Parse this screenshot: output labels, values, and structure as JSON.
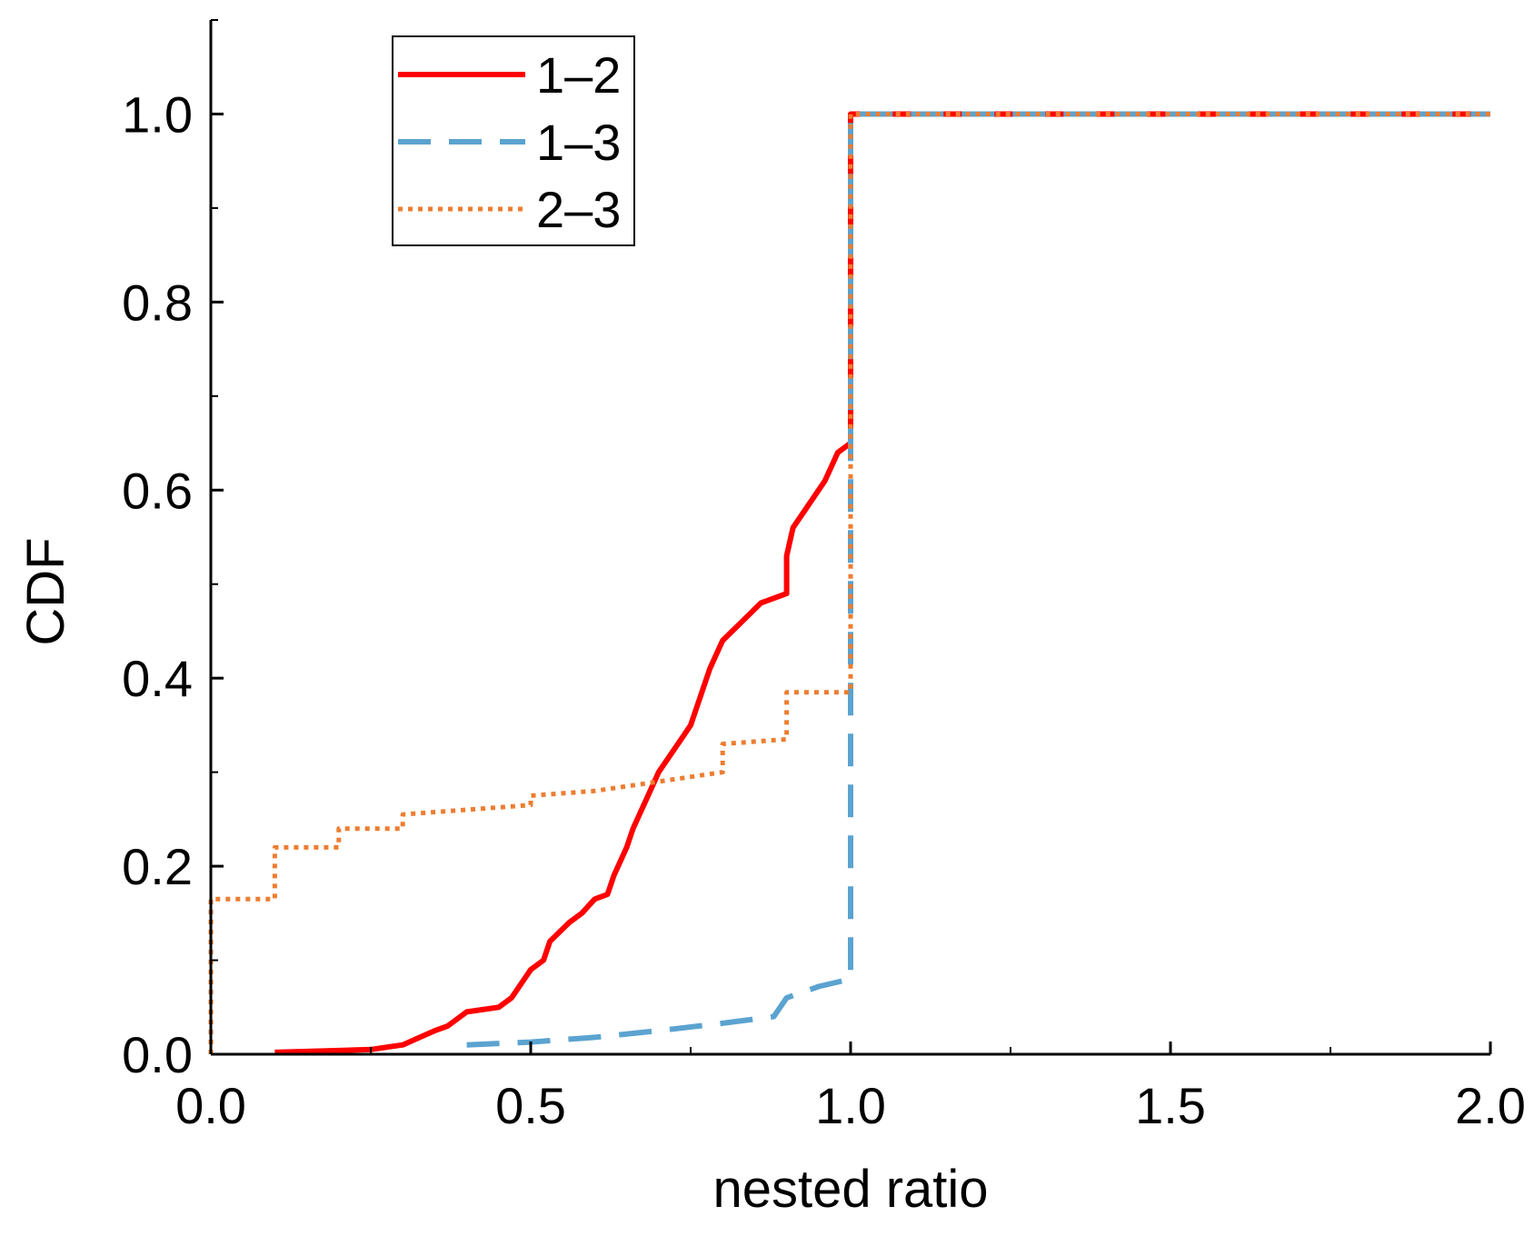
{
  "chart_data": {
    "type": "line",
    "title": "",
    "xlabel": "nested ratio",
    "ylabel": "CDF",
    "xlim": [
      0.0,
      2.0
    ],
    "ylim": [
      0.0,
      1.1
    ],
    "x_ticks": [
      0.0,
      0.5,
      1.0,
      1.5,
      2.0
    ],
    "x_tick_labels": [
      "0.0",
      "0.5",
      "1.0",
      "1.5",
      "2.0"
    ],
    "y_ticks": [
      0.0,
      0.2,
      0.4,
      0.6,
      0.8,
      1.0
    ],
    "y_tick_labels": [
      "0.0",
      "0.2",
      "0.4",
      "0.6",
      "0.8",
      "1.0"
    ],
    "grid": false,
    "legend_position": "top-left",
    "series": [
      {
        "name": "1–2",
        "color": "#ff0000",
        "style": "solid",
        "points": [
          [
            0.1,
            0.002
          ],
          [
            0.2,
            0.004
          ],
          [
            0.25,
            0.005
          ],
          [
            0.3,
            0.01
          ],
          [
            0.35,
            0.025
          ],
          [
            0.37,
            0.03
          ],
          [
            0.4,
            0.045
          ],
          [
            0.45,
            0.05
          ],
          [
            0.47,
            0.06
          ],
          [
            0.5,
            0.09
          ],
          [
            0.52,
            0.1
          ],
          [
            0.53,
            0.12
          ],
          [
            0.56,
            0.14
          ],
          [
            0.58,
            0.15
          ],
          [
            0.6,
            0.165
          ],
          [
            0.62,
            0.17
          ],
          [
            0.63,
            0.19
          ],
          [
            0.65,
            0.22
          ],
          [
            0.66,
            0.24
          ],
          [
            0.68,
            0.27
          ],
          [
            0.7,
            0.3
          ],
          [
            0.72,
            0.32
          ],
          [
            0.74,
            0.34
          ],
          [
            0.75,
            0.35
          ],
          [
            0.78,
            0.41
          ],
          [
            0.8,
            0.44
          ],
          [
            0.83,
            0.46
          ],
          [
            0.86,
            0.48
          ],
          [
            0.9,
            0.49
          ],
          [
            0.9,
            0.53
          ],
          [
            0.91,
            0.56
          ],
          [
            0.93,
            0.58
          ],
          [
            0.96,
            0.61
          ],
          [
            0.98,
            0.64
          ],
          [
            1.0,
            0.65
          ],
          [
            1.0,
            1.0
          ],
          [
            2.0,
            1.0
          ]
        ]
      },
      {
        "name": "1–3",
        "color": "#5ba3d0",
        "style": "dashed",
        "points": [
          [
            0.4,
            0.01
          ],
          [
            0.5,
            0.013
          ],
          [
            0.6,
            0.018
          ],
          [
            0.7,
            0.025
          ],
          [
            0.8,
            0.033
          ],
          [
            0.88,
            0.04
          ],
          [
            0.9,
            0.06
          ],
          [
            0.95,
            0.072
          ],
          [
            1.0,
            0.08
          ],
          [
            1.0,
            1.0
          ],
          [
            2.0,
            1.0
          ]
        ]
      },
      {
        "name": "2–3",
        "color": "#ed7d31",
        "style": "dotted",
        "points": [
          [
            0.0,
            0.0
          ],
          [
            0.0,
            0.165
          ],
          [
            0.1,
            0.165
          ],
          [
            0.1,
            0.22
          ],
          [
            0.2,
            0.22
          ],
          [
            0.2,
            0.24
          ],
          [
            0.3,
            0.24
          ],
          [
            0.3,
            0.255
          ],
          [
            0.4,
            0.26
          ],
          [
            0.5,
            0.265
          ],
          [
            0.5,
            0.275
          ],
          [
            0.6,
            0.28
          ],
          [
            0.7,
            0.29
          ],
          [
            0.8,
            0.3
          ],
          [
            0.8,
            0.33
          ],
          [
            0.9,
            0.335
          ],
          [
            0.9,
            0.385
          ],
          [
            1.0,
            0.385
          ],
          [
            1.0,
            1.0
          ],
          [
            2.0,
            1.0
          ]
        ]
      }
    ]
  }
}
